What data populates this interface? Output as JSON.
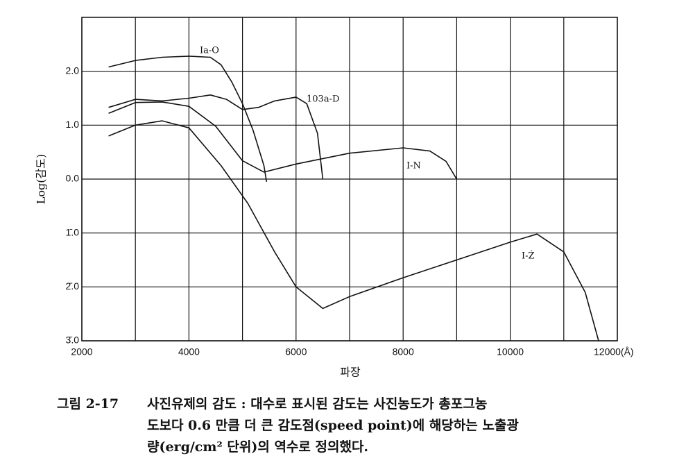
{
  "chart_data": {
    "type": "line",
    "x_label": "파장",
    "y_label": "Log(감도)",
    "xlim": [
      2000,
      12000
    ],
    "xticks": [
      2000,
      4000,
      6000,
      8000,
      10000,
      {
        "value": 12000,
        "label": "12000(Å)"
      }
    ],
    "x_gridlines": [
      3000,
      5000,
      7000,
      9000,
      11000
    ],
    "ylim": [
      -3,
      3
    ],
    "yticks": [
      {
        "value": 2,
        "label": "2.0"
      },
      {
        "value": 1,
        "label": "1.0"
      },
      {
        "value": 0,
        "label": "0.0"
      },
      {
        "value": -1,
        "label": "1̄.0"
      },
      {
        "value": -2,
        "label": "2̄.0"
      },
      {
        "value": -3,
        "label": "3̄.0"
      }
    ],
    "grid": true,
    "color": "#111111",
    "series": [
      {
        "name": "Ia-O",
        "x": [
          2500,
          3000,
          3500,
          4000,
          4400,
          4600,
          4800,
          5000,
          5200,
          5400,
          5450
        ],
        "values": [
          2.08,
          2.2,
          2.26,
          2.28,
          2.26,
          2.12,
          1.8,
          1.4,
          0.9,
          0.25,
          -0.05
        ]
      },
      {
        "name": "103a-D",
        "x": [
          2500,
          3000,
          3500,
          4000,
          4400,
          4700,
          5000,
          5300,
          5600,
          6000,
          6200,
          6400,
          6500
        ],
        "values": [
          1.33,
          1.48,
          1.45,
          1.5,
          1.56,
          1.48,
          1.29,
          1.33,
          1.45,
          1.52,
          1.4,
          0.85,
          0
        ]
      },
      {
        "name": "I-N",
        "x": [
          2500,
          3000,
          3500,
          4000,
          4500,
          5000,
          5400,
          6000,
          7000,
          8000,
          8500,
          8800,
          9000
        ],
        "values": [
          1.22,
          1.42,
          1.43,
          1.35,
          0.98,
          0.34,
          0.13,
          0.28,
          0.48,
          0.58,
          0.52,
          0.33,
          0
        ]
      },
      {
        "name": "I-Ż",
        "x": [
          2500,
          3000,
          3500,
          4000,
          4600,
          5100,
          5600,
          6000,
          6500,
          7000,
          8000,
          9000,
          10000,
          10500,
          11000,
          11400,
          11650
        ],
        "values": [
          0.8,
          1.0,
          1.08,
          0.95,
          0.25,
          -0.45,
          -1.35,
          -2.0,
          -2.4,
          -2.18,
          -1.83,
          -1.5,
          -1.17,
          -1.02,
          -1.35,
          -2.1,
          -3.0
        ]
      }
    ],
    "caption_label": "그림 2-17",
    "caption_lines": [
      "사진유제의 감도 : 대수로 표시된 감도는 사진농도가 총포그농",
      "도보다 0.6 만큼 더 큰 감도점(speed point)에 해당하는 노출광",
      "량(erg/cm² 단위)의 역수로 정의했다."
    ]
  }
}
